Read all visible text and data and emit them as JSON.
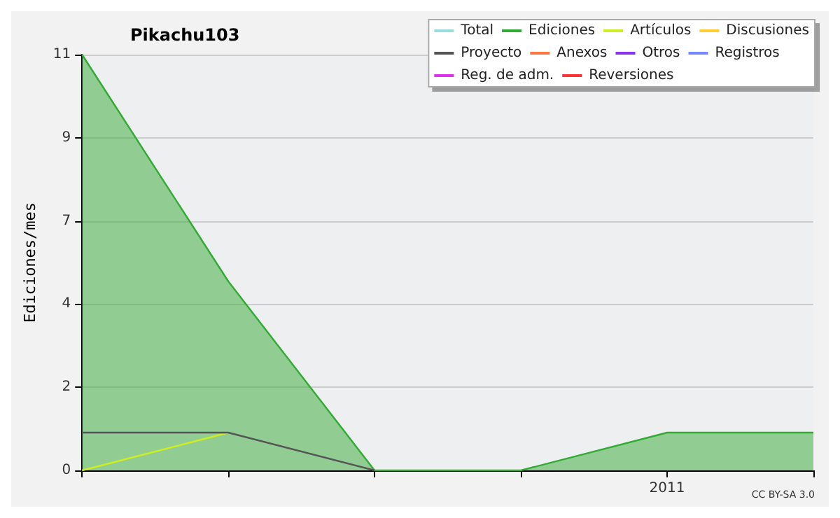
{
  "chart_data": {
    "type": "line",
    "title": "Pikachu103",
    "ylabel": "Ediciones/mes",
    "categories": [
      null,
      null,
      null,
      null,
      "2011",
      null
    ],
    "series": [
      {
        "name": "Total",
        "color": "#99dddd",
        "values": [
          null,
          null,
          null,
          null,
          null,
          null
        ]
      },
      {
        "name": "Ediciones",
        "color": "#33aa33",
        "type": "area",
        "values": [
          11,
          5,
          0,
          0,
          1,
          1
        ]
      },
      {
        "name": "Artículos",
        "color": "#ccee22",
        "values": [
          0,
          1,
          null,
          null,
          null,
          null
        ]
      },
      {
        "name": "Discusiones",
        "color": "#ffcc33",
        "values": [
          null,
          null,
          null,
          null,
          null,
          null
        ]
      },
      {
        "name": "Proyecto",
        "color": "#555555",
        "values": [
          1,
          1,
          0,
          null,
          null,
          null
        ]
      },
      {
        "name": "Anexos",
        "color": "#ff7744",
        "values": [
          null,
          null,
          null,
          null,
          null,
          null
        ]
      },
      {
        "name": "Otros",
        "color": "#8833ee",
        "values": [
          null,
          null,
          null,
          null,
          null,
          null
        ]
      },
      {
        "name": "Registros",
        "color": "#7788ff",
        "values": [
          null,
          null,
          null,
          null,
          null,
          null
        ]
      },
      {
        "name": "Reg. de adm.",
        "color": "#dd33ee",
        "values": [
          null,
          null,
          null,
          null,
          null,
          null
        ]
      },
      {
        "name": "Reversiones",
        "color": "#ff3333",
        "values": [
          null,
          null,
          null,
          null,
          null,
          null
        ]
      }
    ],
    "ylim": [
      0,
      11
    ],
    "yticks": [
      0,
      {
        "value": 2.2,
        "label": "2"
      },
      {
        "value": 4.4,
        "label": "4"
      },
      {
        "value": 6.6,
        "label": "7"
      },
      {
        "value": 8.8,
        "label": "9"
      },
      11
    ],
    "grid": "y",
    "legend": "top right",
    "marker": "none",
    "line_style": "solid",
    "annotations": [
      "CC BY-SA 3.0"
    ]
  }
}
